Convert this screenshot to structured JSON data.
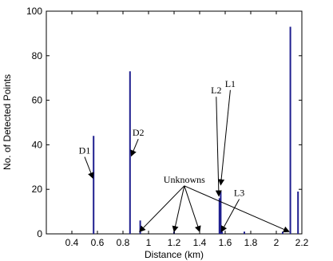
{
  "chart_data": {
    "type": "bar",
    "xlabel": "Distance (km)",
    "ylabel": "No. of Detected Points",
    "xlim": [
      0.2,
      2.2
    ],
    "ylim": [
      0,
      100
    ],
    "xticks": [
      0.4,
      0.6,
      0.8,
      1,
      1.2,
      1.4,
      1.6,
      1.8,
      2,
      2.2
    ],
    "xtick_labels": [
      "0.4",
      "0.6",
      "0.8",
      "1",
      "1.2",
      "1.4",
      "1.6",
      "1.8",
      "2",
      "2.2"
    ],
    "yticks": [
      0,
      20,
      40,
      60,
      80,
      100
    ],
    "ytick_labels": [
      "0",
      "20",
      "40",
      "60",
      "80",
      "100"
    ],
    "grid": false,
    "bar_color": "#1f1f8f",
    "bars": [
      {
        "x": 0.57,
        "y": 44
      },
      {
        "x": 0.855,
        "y": 73
      },
      {
        "x": 0.935,
        "y": 6
      },
      {
        "x": 1.2,
        "y": 1
      },
      {
        "x": 1.555,
        "y": 16
      },
      {
        "x": 1.565,
        "y": 19
      },
      {
        "x": 1.575,
        "y": 1
      },
      {
        "x": 1.75,
        "y": 1
      },
      {
        "x": 2.05,
        "y": 1
      },
      {
        "x": 2.11,
        "y": 93
      },
      {
        "x": 2.17,
        "y": 19
      }
    ],
    "annotations": [
      {
        "text": "D1",
        "text_at": [
          0.5,
          36
        ],
        "arrow_to": [
          0.565,
          25
        ]
      },
      {
        "text": "D2",
        "text_at": [
          0.92,
          44
        ],
        "arrow_to": [
          0.865,
          35
        ]
      },
      {
        "text": "L2",
        "text_at": [
          1.53,
          63
        ],
        "arrow_to": [
          1.55,
          17
        ]
      },
      {
        "text": "L1",
        "text_at": [
          1.64,
          66
        ],
        "arrow_to": [
          1.565,
          22
        ]
      },
      {
        "text": "L3",
        "text_at": [
          1.71,
          17
        ],
        "arrow_to": [
          1.57,
          1
        ]
      },
      {
        "text": "Unknowns",
        "text_at": [
          1.28,
          23
        ],
        "arrow_to": [
          [
            0.93,
            1
          ],
          [
            1.2,
            1
          ],
          [
            1.4,
            1
          ],
          [
            2.1,
            1
          ]
        ]
      }
    ]
  }
}
